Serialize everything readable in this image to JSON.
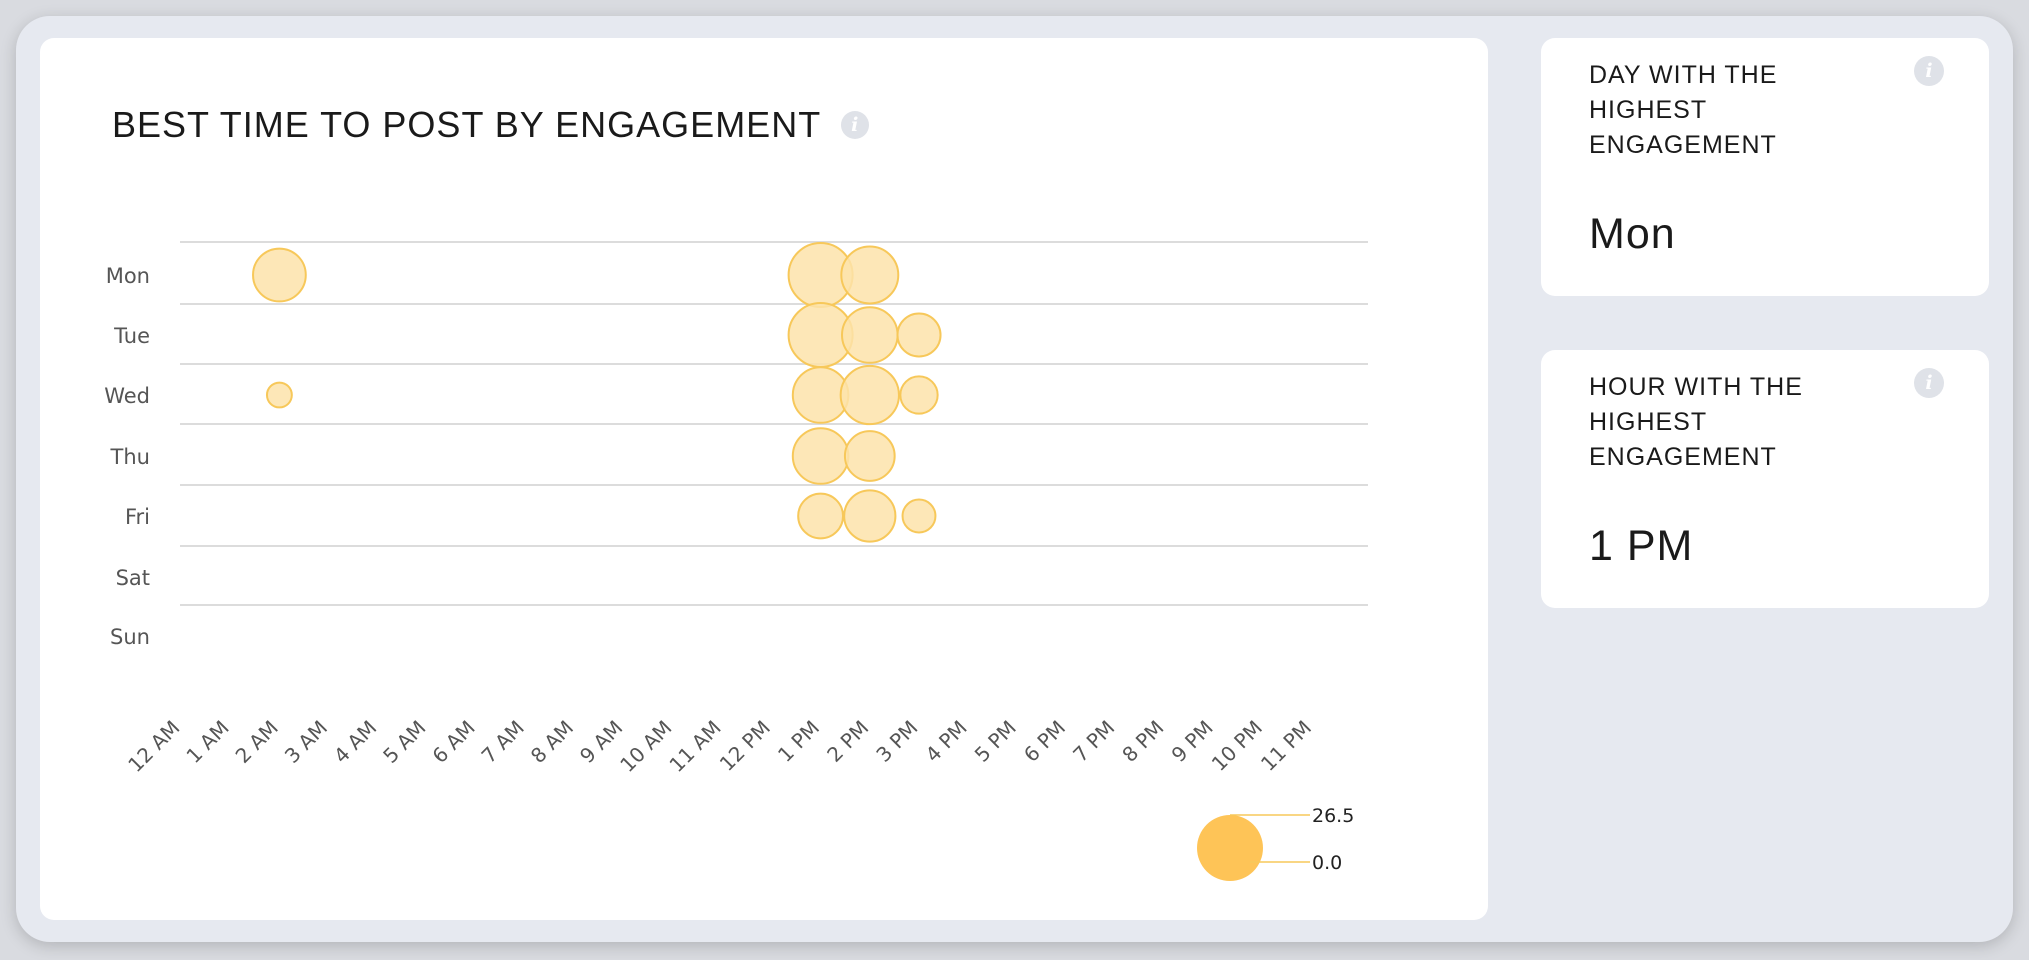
{
  "chart_card": {
    "title": "BEST TIME TO POST BY ENGAGEMENT",
    "info_icon": "info-icon"
  },
  "chart_data": {
    "type": "scatter",
    "title": "BEST TIME TO POST BY ENGAGEMENT",
    "days": [
      "Mon",
      "Tue",
      "Wed",
      "Thu",
      "Fri",
      "Sat",
      "Sun"
    ],
    "hours": [
      "12 AM",
      "1 AM",
      "2 AM",
      "3 AM",
      "4 AM",
      "5 AM",
      "6 AM",
      "7 AM",
      "8 AM",
      "9 AM",
      "10 AM",
      "11 AM",
      "12 PM",
      "1 PM",
      "2 PM",
      "3 PM",
      "4 PM",
      "5 PM",
      "6 PM",
      "7 PM",
      "8 PM",
      "9 PM",
      "10 PM",
      "11 PM"
    ],
    "points": [
      {
        "day": "Mon",
        "hour": "2 AM",
        "value": 18
      },
      {
        "day": "Mon",
        "hour": "1 PM",
        "value": 26.5
      },
      {
        "day": "Mon",
        "hour": "2 PM",
        "value": 21
      },
      {
        "day": "Tue",
        "hour": "1 PM",
        "value": 26.5
      },
      {
        "day": "Tue",
        "hour": "2 PM",
        "value": 20
      },
      {
        "day": "Tue",
        "hour": "3 PM",
        "value": 12
      },
      {
        "day": "Wed",
        "hour": "2 AM",
        "value": 4
      },
      {
        "day": "Wed",
        "hour": "1 PM",
        "value": 20
      },
      {
        "day": "Wed",
        "hour": "2 PM",
        "value": 22
      },
      {
        "day": "Wed",
        "hour": "3 PM",
        "value": 9
      },
      {
        "day": "Thu",
        "hour": "1 PM",
        "value": 20
      },
      {
        "day": "Thu",
        "hour": "2 PM",
        "value": 16
      },
      {
        "day": "Fri",
        "hour": "1 PM",
        "value": 13
      },
      {
        "day": "Fri",
        "hour": "2 PM",
        "value": 17
      },
      {
        "day": "Fri",
        "hour": "3 PM",
        "value": 7
      }
    ],
    "size_legend": {
      "max_label": "26.5",
      "min_label": "0.0",
      "max": 26.5,
      "min": 0.0
    },
    "grid": true,
    "colors": {
      "bubble_fill": "#fde3aa",
      "bubble_stroke": "#f7c85a",
      "legend_fill": "#fec457",
      "grid": "#dcdcdc",
      "label": "#555555"
    }
  },
  "day_card": {
    "label": "DAY WITH THE HIGHEST ENGAGEMENT",
    "value": "Mon",
    "info_icon": "info-icon"
  },
  "hour_card": {
    "label": "HOUR WITH THE HIGHEST ENGAGEMENT",
    "value": "1 PM",
    "info_icon": "info-icon"
  }
}
